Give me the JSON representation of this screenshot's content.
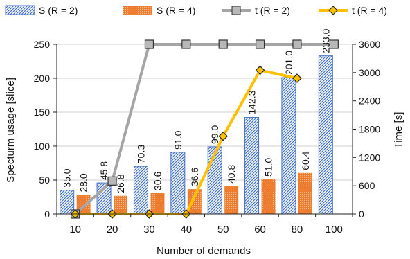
{
  "chart_data": {
    "type": "bar",
    "xlabel": "Number of demands",
    "ylabel": "Specturm usage [slice]",
    "y2label": "Time [s]",
    "categories": [
      "10",
      "20",
      "30",
      "40",
      "50",
      "60",
      "80",
      "100"
    ],
    "ylim": [
      0,
      250
    ],
    "yticks": [
      "0",
      "50",
      "100",
      "150",
      "200",
      "250"
    ],
    "y2lim": [
      0,
      3600
    ],
    "y2ticks": [
      "0",
      "600",
      "1200",
      "1800",
      "2400",
      "3000",
      "3600"
    ],
    "grid": "horizontal",
    "legend_position": "top",
    "series": [
      {
        "name": "S (R = 2)",
        "kind": "bar",
        "axis": "left",
        "color": "#4472C4",
        "pattern": "diagonal-hatch",
        "values": [
          35.0,
          45.8,
          70.3,
          91.0,
          99.0,
          142.3,
          201.0,
          233.0
        ],
        "labels": [
          "35.0",
          "45.8",
          "70.3",
          "91.0",
          "99.0",
          "142.3",
          "201.0",
          "233.0"
        ]
      },
      {
        "name": "S (R = 4)",
        "kind": "bar",
        "axis": "left",
        "color": "#ED7D31",
        "pattern": "dotted",
        "values": [
          28.0,
          26.8,
          30.6,
          36.6,
          40.8,
          51.0,
          60.4,
          null
        ],
        "labels": [
          "28.0",
          "26.8",
          "30.6",
          "36.6",
          "40.8",
          "51.0",
          "60.4",
          ""
        ]
      },
      {
        "name": "t (R = 2)",
        "kind": "line",
        "axis": "right",
        "color": "#A5A5A5",
        "marker": "square",
        "values": [
          0,
          700,
          3600,
          3600,
          3600,
          3600,
          3600,
          3600
        ]
      },
      {
        "name": "t (R = 4)",
        "kind": "line",
        "axis": "right",
        "color": "#FFC000",
        "marker": "diamond",
        "values": [
          0,
          0,
          0,
          0,
          1650,
          3050,
          2880,
          null
        ]
      }
    ]
  }
}
